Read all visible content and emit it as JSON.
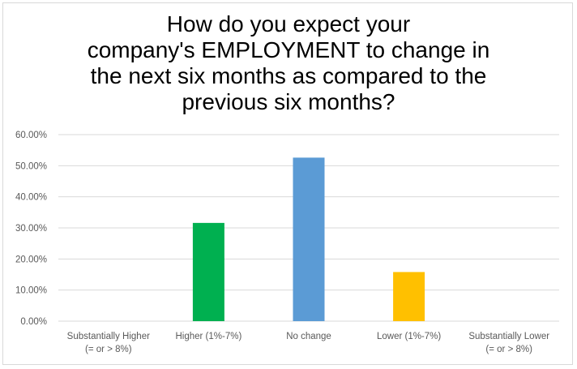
{
  "chart_data": {
    "type": "bar",
    "title_lines": [
      "How do you expect your",
      "company's EMPLOYMENT to change in",
      "the next six months as compared to the",
      "previous six months?"
    ],
    "categories": [
      [
        "Substantially Higher",
        "(= or > 8%)"
      ],
      [
        "Higher (1%-7%)"
      ],
      [
        "No change"
      ],
      [
        "Lower (1%-7%)"
      ],
      [
        "Substantially Lower",
        "(= or > 8%)"
      ]
    ],
    "values": [
      0,
      31.6,
      52.6,
      15.8,
      0
    ],
    "bar_colors": [
      "#00B050",
      "#00B050",
      "#5B9BD5",
      "#FFC000",
      "#FFC000"
    ],
    "y_ticks": [
      "0.00%",
      "10.00%",
      "20.00%",
      "30.00%",
      "40.00%",
      "50.00%",
      "60.00%"
    ],
    "ylim": [
      0,
      60
    ],
    "grid": true,
    "legend": "none"
  }
}
